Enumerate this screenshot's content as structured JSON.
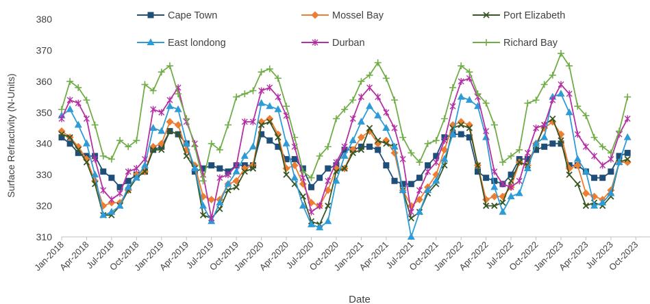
{
  "chart_data": {
    "type": "line",
    "xlabel": "Date",
    "ylabel": "Surface Refractivity (N-Units)",
    "ylim": [
      310,
      380
    ],
    "yticks": [
      310,
      320,
      330,
      340,
      350,
      360,
      370,
      380
    ],
    "grid": false,
    "legend_position": "top",
    "x_start": "Jan-2018",
    "xtick_labels": [
      "Jan-2018",
      "Apr-2018",
      "Jul-2018",
      "Oct-2018",
      "Jan-2019",
      "Apr-2019",
      "Jul-2019",
      "Oct-2019",
      "Jan-2020",
      "Apr-2020",
      "Jul-2020",
      "Oct-2020",
      "Jan-2021",
      "Apr-2021",
      "Jul-2021",
      "Oct-2021",
      "Jan-2022",
      "Apr-2022",
      "Jul-2022",
      "Oct-2022",
      "Jan-2023",
      "Apr-2023",
      "Jul-2023",
      "Oct-2023"
    ],
    "series": [
      {
        "name": "Cape Town",
        "color": "#1f4e79",
        "marker": "square",
        "values": [
          342,
          340,
          337,
          336,
          336,
          331,
          329,
          326,
          328,
          330,
          331,
          338,
          339,
          344,
          343,
          340,
          331,
          332,
          333,
          332,
          331,
          333,
          333,
          333,
          343,
          341,
          339,
          335,
          335,
          332,
          326,
          329,
          332,
          333,
          338,
          338,
          339,
          339,
          338,
          333,
          328,
          327,
          327,
          329,
          333,
          336,
          342,
          343,
          343,
          342,
          331,
          329,
          328,
          327,
          330,
          335,
          335,
          338,
          339,
          340,
          340,
          333,
          333,
          331,
          329,
          329,
          331,
          336,
          337
        ]
      },
      {
        "name": "Mossel Bay",
        "color": "#ed7d31",
        "marker": "diamond",
        "values": [
          344,
          342,
          339,
          335,
          328,
          320,
          321,
          321,
          325,
          330,
          331,
          339,
          340,
          347,
          346,
          338,
          333,
          323,
          322,
          322,
          327,
          328,
          332,
          333,
          347,
          348,
          343,
          332,
          333,
          327,
          321,
          320,
          325,
          332,
          332,
          338,
          342,
          344,
          340,
          341,
          337,
          325,
          320,
          322,
          326,
          330,
          338,
          346,
          347,
          346,
          333,
          322,
          323,
          323,
          326,
          334,
          333,
          340,
          345,
          347,
          343,
          332,
          333,
          324,
          323,
          322,
          325,
          334,
          334
        ]
      },
      {
        "name": "Port Elizabeth",
        "color": "#375623",
        "marker": "x",
        "values": [
          343,
          342,
          338,
          334,
          327,
          317,
          317,
          320,
          325,
          329,
          331,
          338,
          338,
          344,
          343,
          336,
          332,
          317,
          316,
          319,
          325,
          326,
          331,
          332,
          346,
          347,
          342,
          330,
          327,
          323,
          315,
          314,
          320,
          331,
          332,
          337,
          338,
          345,
          341,
          340,
          339,
          325,
          316,
          318,
          324,
          327,
          333,
          345,
          346,
          345,
          333,
          320,
          320,
          321,
          328,
          334,
          333,
          339,
          346,
          348,
          341,
          330,
          327,
          320,
          321,
          320,
          323,
          334,
          335
        ]
      },
      {
        "name": "East londong",
        "color": "#2e9bd6",
        "marker": "triangle",
        "values": [
          349,
          351,
          346,
          340,
          330,
          317,
          318,
          320,
          326,
          329,
          333,
          345,
          344,
          352,
          351,
          340,
          332,
          320,
          315,
          321,
          327,
          331,
          336,
          339,
          353,
          352,
          351,
          340,
          329,
          320,
          314,
          313,
          315,
          328,
          336,
          341,
          347,
          352,
          349,
          345,
          339,
          325,
          310,
          318,
          325,
          328,
          335,
          343,
          355,
          354,
          352,
          342,
          326,
          318,
          323,
          324,
          332,
          340,
          342,
          355,
          356,
          350,
          335,
          331,
          320,
          321,
          324,
          334,
          342
        ]
      },
      {
        "name": "Durban",
        "color": "#b42fa4",
        "marker": "asterisk",
        "values": [
          348,
          354,
          353,
          348,
          335,
          325,
          322,
          324,
          331,
          332,
          335,
          351,
          350,
          354,
          358,
          347,
          340,
          330,
          316,
          329,
          330,
          333,
          347,
          347,
          357,
          358,
          355,
          349,
          339,
          329,
          318,
          320,
          328,
          334,
          339,
          348,
          355,
          358,
          355,
          350,
          345,
          335,
          318,
          325,
          331,
          334,
          341,
          352,
          360,
          361,
          355,
          344,
          331,
          327,
          326,
          328,
          337,
          345,
          346,
          354,
          359,
          356,
          343,
          339,
          336,
          333,
          335,
          343,
          348
        ]
      },
      {
        "name": "Richard Bay",
        "color": "#70ad47",
        "marker": "plus",
        "values": [
          351,
          360,
          358,
          354,
          346,
          336,
          335,
          341,
          339,
          341,
          359,
          357,
          363,
          365,
          356,
          348,
          339,
          328,
          340,
          338,
          346,
          355,
          356,
          357,
          363,
          364,
          361,
          352,
          342,
          331,
          329,
          336,
          339,
          348,
          351,
          354,
          360,
          362,
          366,
          361,
          354,
          342,
          337,
          334,
          340,
          341,
          348,
          358,
          365,
          363,
          356,
          353,
          346,
          334,
          336,
          338,
          353,
          354,
          359,
          362,
          369,
          365,
          352,
          349,
          342,
          339,
          337,
          344,
          355
        ]
      }
    ]
  }
}
